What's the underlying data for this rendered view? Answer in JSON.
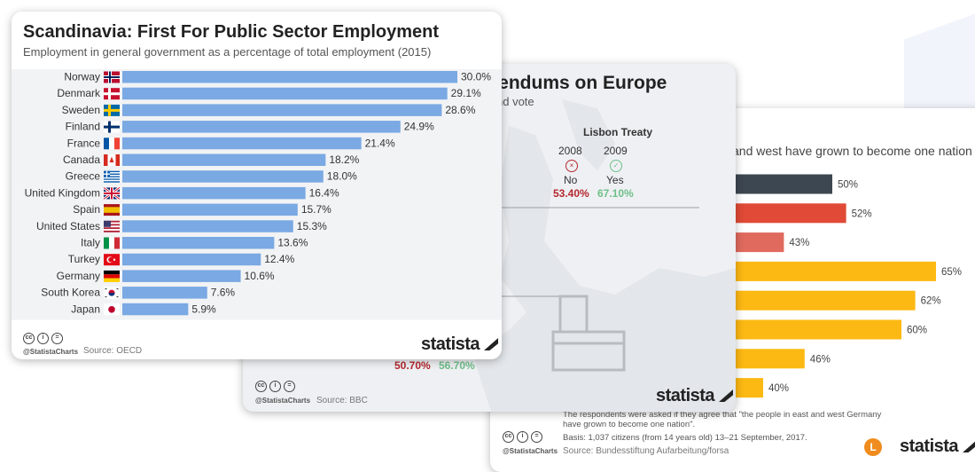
{
  "charts": [
    {
      "id": "public_sector",
      "title": "Scandinavia: First For Public Sector Employment",
      "subtitle": "Employment in general government as a percentage of total employment (2015)",
      "handle": "@StatistaCharts",
      "source": "Source: OECD",
      "brand": "statista",
      "colors": {
        "bar": "#7aa9e3"
      },
      "chart_data": {
        "type": "bar",
        "orientation": "horizontal",
        "categories": [
          "Norway",
          "Denmark",
          "Sweden",
          "Finland",
          "France",
          "Canada",
          "Greece",
          "United Kingdom",
          "Spain",
          "United States",
          "Italy",
          "Turkey",
          "Germany",
          "South Korea",
          "Japan"
        ],
        "values": [
          30.0,
          29.1,
          28.6,
          24.9,
          21.4,
          18.2,
          18.0,
          16.4,
          15.7,
          15.3,
          13.6,
          12.4,
          10.6,
          7.6,
          5.9
        ],
        "value_labels": [
          "30.0%",
          "29.1%",
          "28.6%",
          "24.9%",
          "21.4%",
          "18.2%",
          "18.0%",
          "16.4%",
          "15.7%",
          "15.3%",
          "13.6%",
          "12.4%",
          "10.6%",
          "7.6%",
          "5.9%"
        ],
        "flags": [
          "norway-flag",
          "denmark-flag",
          "sweden-flag",
          "finland-flag",
          "france-flag",
          "canada-flag",
          "greece-flag",
          "uk-flag",
          "spain-flag",
          "usa-flag",
          "italy-flag",
          "turkey-flag",
          "germany-flag",
          "south-korea-flag",
          "japan-flag"
        ],
        "unit": "%"
      }
    },
    {
      "id": "referendums",
      "title_visible": "rendums on Europe",
      "subtitle_visible": "nd vote",
      "treaty": "Lisbon Treaty",
      "years": [
        "2008",
        "2009"
      ],
      "answers": [
        "No",
        "Yes"
      ],
      "answer_percentages": [
        "53.40%",
        "67.10%"
      ],
      "bottom_percentages": [
        "50.70%",
        "56.70%"
      ],
      "handle": "@StatistaCharts",
      "source": "Source: BBC",
      "brand": "statista",
      "colors": {
        "no": "#b5282e",
        "yes": "#6fbf8a"
      }
    },
    {
      "id": "one_nation",
      "subtitle_visible": "and west have grown to become one nation",
      "handle": "@StatistaCharts",
      "source": "Source: Bundesstiftung Aufarbeitung/forsa",
      "note": "The respondents were asked if they agree that \"the people in east and west Germany have grown to become one nation\".",
      "basis": "Basis: 1,037 citizens (from 14 years old) 13–21 September, 2017.",
      "brand": "statista",
      "chart_data": {
        "type": "bar",
        "orientation": "horizontal",
        "values": [
          50,
          52,
          43,
          65,
          62,
          60,
          46,
          40
        ],
        "value_labels": [
          "50%",
          "52%",
          "43%",
          "65%",
          "62%",
          "60%",
          "46%",
          "40%"
        ],
        "colors": [
          "#3d4752",
          "#e04a36",
          "#e06a5e",
          "#fdb913",
          "#fdb913",
          "#fdb913",
          "#fdb913",
          "#fdb913"
        ],
        "unit": "%"
      }
    }
  ]
}
